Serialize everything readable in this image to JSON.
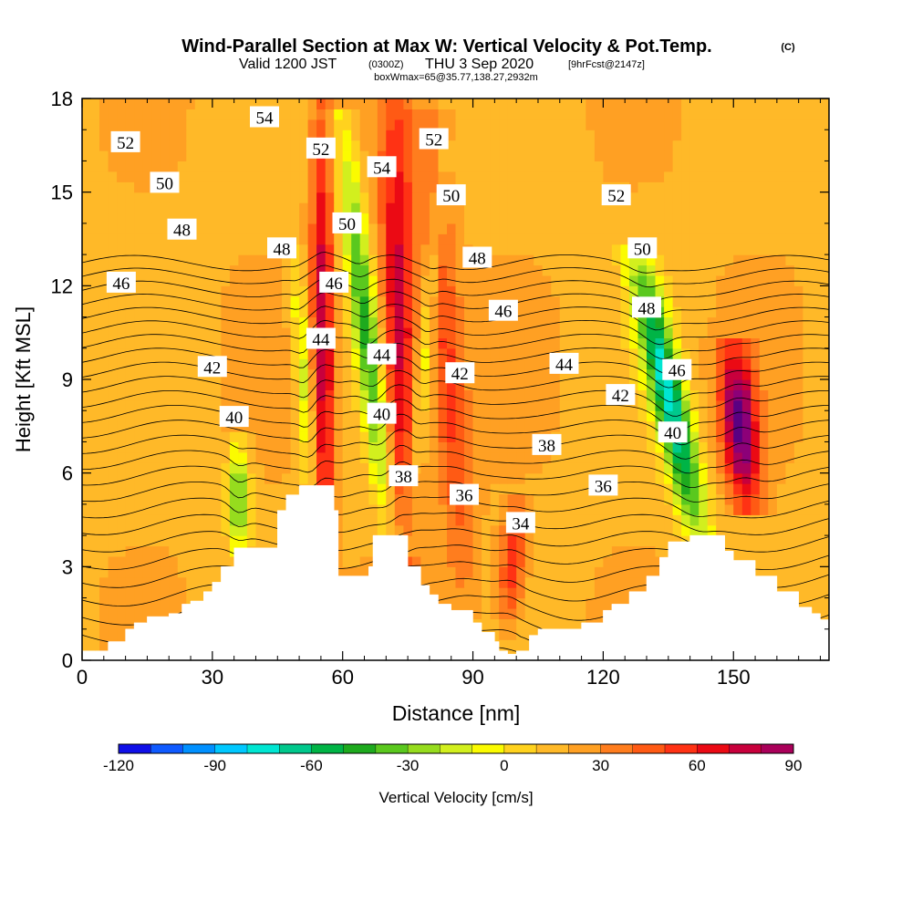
{
  "title": {
    "main": "Wind-Parallel Section at Max W: Vertical Velocity & Pot.Temp.",
    "copyright": "(C)",
    "valid_prefix": "Valid 1200 JST",
    "valid_utc": "(0300Z)",
    "valid_date": "THU 3 Sep 2020",
    "forecast": "[9hrFcst@2147z]",
    "box": "boxWmax=65@35.77,138.27,2932m"
  },
  "chart_data": {
    "type": "heatmap",
    "xlabel": "Distance [nm]",
    "ylabel": "Height [Kft MSL]",
    "xlim": [
      0,
      172
    ],
    "ylim": [
      0,
      18
    ],
    "x_ticks": [
      "0",
      "30",
      "60",
      "90",
      "120",
      "150"
    ],
    "y_ticks": [
      "0",
      "3",
      "6",
      "9",
      "12",
      "15",
      "18"
    ],
    "colorbar": {
      "label": "Vertical Velocity [cm/s]",
      "range": [
        -120,
        90
      ],
      "step": 10,
      "tick_labels": [
        "-120",
        "-90",
        "-60",
        "-30",
        "0",
        "30",
        "60",
        "90"
      ],
      "colors": [
        "#1010e8",
        "#0f5aff",
        "#0090ff",
        "#00c8ff",
        "#00e6d2",
        "#00c88c",
        "#00b446",
        "#1eaa1e",
        "#5ac81e",
        "#96dc1e",
        "#d2ef1e",
        "#fbfb00",
        "#ffd21e",
        "#ffb928",
        "#ffa023",
        "#ff7d1e",
        "#ff5a14",
        "#ff3214",
        "#eb0a14",
        "#c8003c",
        "#aa005a",
        "#8c0078",
        "#5a0082"
      ]
    },
    "contour_field": "Potential Temperature (C)",
    "contour_interval": 1,
    "contour_labels": [
      {
        "value": "54",
        "x": 42,
        "y": 17.4
      },
      {
        "value": "52",
        "x": 10,
        "y": 16.6
      },
      {
        "value": "52",
        "x": 55,
        "y": 16.4
      },
      {
        "value": "54",
        "x": 69,
        "y": 15.8
      },
      {
        "value": "52",
        "x": 81,
        "y": 16.7
      },
      {
        "value": "50",
        "x": 19,
        "y": 15.3
      },
      {
        "value": "50",
        "x": 85,
        "y": 14.9
      },
      {
        "value": "52",
        "x": 123,
        "y": 14.9
      },
      {
        "value": "50",
        "x": 61,
        "y": 14.0
      },
      {
        "value": "48",
        "x": 23,
        "y": 13.8
      },
      {
        "value": "48",
        "x": 46,
        "y": 13.2
      },
      {
        "value": "48",
        "x": 91,
        "y": 12.9
      },
      {
        "value": "50",
        "x": 129,
        "y": 13.2
      },
      {
        "value": "46",
        "x": 9,
        "y": 12.1
      },
      {
        "value": "46",
        "x": 58,
        "y": 12.1
      },
      {
        "value": "46",
        "x": 97,
        "y": 11.2
      },
      {
        "value": "48",
        "x": 130,
        "y": 11.3
      },
      {
        "value": "44",
        "x": 55,
        "y": 10.3
      },
      {
        "value": "44",
        "x": 69,
        "y": 9.8
      },
      {
        "value": "42",
        "x": 30,
        "y": 9.4
      },
      {
        "value": "42",
        "x": 87,
        "y": 9.2
      },
      {
        "value": "44",
        "x": 111,
        "y": 9.5
      },
      {
        "value": "46",
        "x": 137,
        "y": 9.3
      },
      {
        "value": "42",
        "x": 124,
        "y": 8.5
      },
      {
        "value": "40",
        "x": 35,
        "y": 7.8
      },
      {
        "value": "40",
        "x": 69,
        "y": 7.9
      },
      {
        "value": "38",
        "x": 107,
        "y": 6.9
      },
      {
        "value": "40",
        "x": 136,
        "y": 7.3
      },
      {
        "value": "38",
        "x": 74,
        "y": 5.9
      },
      {
        "value": "36",
        "x": 88,
        "y": 5.3
      },
      {
        "value": "36",
        "x": 120,
        "y": 5.6
      },
      {
        "value": "34",
        "x": 101,
        "y": 4.4
      }
    ],
    "updraft_bands": [
      {
        "x0": 56,
        "y0": 2.8,
        "x1": 55,
        "y1": 18,
        "w": 2.5,
        "peak": 60
      },
      {
        "x0": 74,
        "y0": 3.2,
        "x1": 72,
        "y1": 18,
        "w": 4,
        "peak": 60
      },
      {
        "x0": 88,
        "y0": 2.0,
        "x1": 80,
        "y1": 17,
        "w": 4,
        "peak": 35
      },
      {
        "x0": 98,
        "y0": 1.0,
        "x1": 100,
        "y1": 5,
        "w": 3,
        "peak": 40
      },
      {
        "x0": 153,
        "y0": 5.0,
        "x1": 150,
        "y1": 10,
        "w": 4,
        "peak": 85
      }
    ],
    "downdraft_bands": [
      {
        "x0": 36,
        "y0": 3.5,
        "x1": 36,
        "y1": 7,
        "w": 2.5,
        "peak": -55
      },
      {
        "x0": 53,
        "y0": 5,
        "x1": 49,
        "y1": 13,
        "w": 2,
        "peak": -35
      },
      {
        "x0": 71,
        "y0": 4,
        "x1": 60,
        "y1": 17,
        "w": 3,
        "peak": -60
      },
      {
        "x0": 75,
        "y0": 4,
        "x1": 83,
        "y1": 16,
        "w": 2,
        "peak": -30
      },
      {
        "x0": 142,
        "y0": 4,
        "x1": 128,
        "y1": 13,
        "w": 4,
        "peak": -90
      }
    ],
    "terrain_x": [
      0,
      3,
      6,
      10,
      12,
      15,
      20,
      23,
      25,
      28,
      30,
      32,
      35,
      40,
      45,
      47,
      50,
      55,
      58,
      59,
      60,
      62,
      64,
      65,
      66,
      67,
      68,
      72,
      75,
      78,
      80,
      82,
      85,
      90,
      92,
      95,
      96,
      98,
      100,
      103,
      105,
      110,
      115,
      120,
      122,
      126,
      130,
      133,
      135,
      140,
      145,
      148,
      150,
      155,
      160,
      165,
      168,
      170,
      172
    ],
    "terrain_y": [
      0.3,
      0.3,
      0.6,
      1.0,
      1.2,
      1.4,
      1.5,
      1.8,
      1.9,
      2.2,
      2.5,
      3.0,
      3.6,
      3.6,
      4.8,
      5.3,
      5.6,
      5.6,
      4.8,
      2.7,
      2.7,
      2.7,
      2.7,
      2.7,
      3.0,
      4.0,
      4.0,
      4.0,
      3.0,
      2.4,
      2.1,
      1.8,
      1.6,
      1.2,
      0.9,
      0.6,
      0.3,
      0.2,
      0.3,
      0.8,
      1.0,
      1.0,
      1.2,
      1.6,
      1.8,
      2.2,
      2.7,
      3.3,
      3.8,
      4.0,
      4.0,
      3.5,
      3.2,
      2.7,
      2.2,
      1.7,
      1.5,
      1.3,
      1.2
    ]
  }
}
